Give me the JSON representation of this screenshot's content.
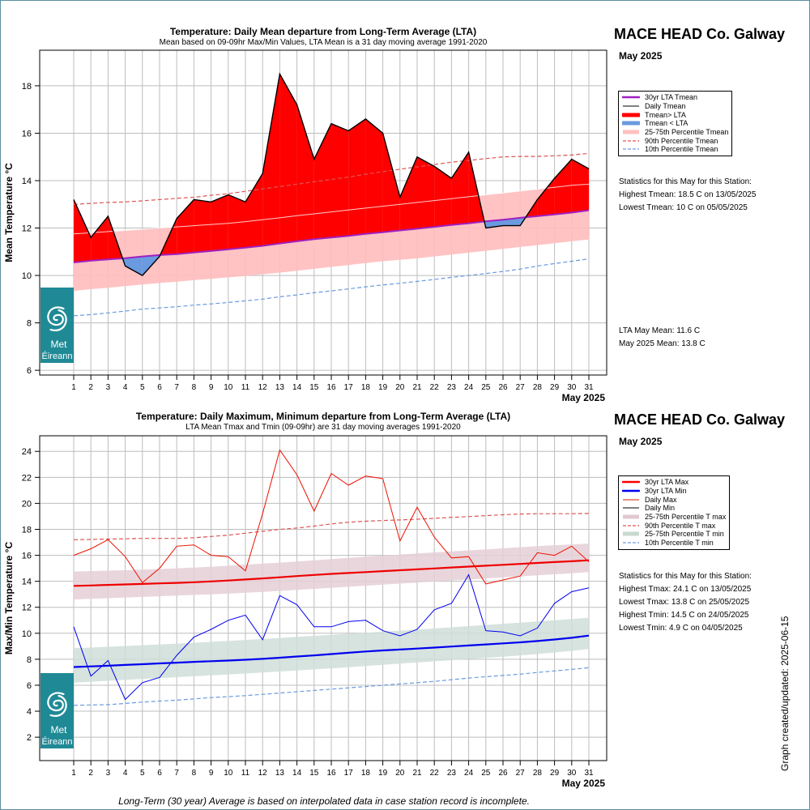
{
  "header_top": {
    "station": "MACE HEAD Co. Galway",
    "month": "May 2025"
  },
  "header_bottom": {
    "station": "MACE HEAD Co. Galway",
    "month": "May 2025"
  },
  "legend_top": [
    {
      "label": "30yr LTA Tmean",
      "color": "#a020c0",
      "style": "line-thick"
    },
    {
      "label": "Daily Tmean",
      "color": "#000000",
      "style": "line"
    },
    {
      "label": "Tmean> LTA",
      "color": "#ff0000",
      "style": "band-strong"
    },
    {
      "label": "Tmean < LTA",
      "color": "#6a9ae0",
      "style": "band-strong"
    },
    {
      "label": "25-75th Percentile Tmean",
      "color": "#ffc0c0",
      "style": "band"
    },
    {
      "label": "90th Percentile Tmean",
      "color": "#dd5555",
      "style": "dash"
    },
    {
      "label": "10th Percentile Tmean",
      "color": "#6a9ae0",
      "style": "dash"
    }
  ],
  "legend_bottom": [
    {
      "label": "30yr LTA Max",
      "color": "#ff0000",
      "style": "line-thick"
    },
    {
      "label": "30yr LTA Min",
      "color": "#0000ee",
      "style": "line-thick"
    },
    {
      "label": "Daily Max",
      "color": "#cc2200",
      "style": "line"
    },
    {
      "label": "Daily Min",
      "color": "#000000",
      "style": "line"
    },
    {
      "label": "25-75th Percentile T max",
      "color": "#e0c8d0",
      "style": "band"
    },
    {
      "label": "90th Percentile T max",
      "color": "#dd5555",
      "style": "dash"
    },
    {
      "label": "25-75th Percentile T min",
      "color": "#c8d8d0",
      "style": "band"
    },
    {
      "label": "10th Percentile T min",
      "color": "#6a9ae0",
      "style": "dash"
    }
  ],
  "stats_top": {
    "heading": "Statistics for this May for this Station:",
    "highest": "Highest Tmean: 18.5 C on 13/05/2025",
    "lowest": "Lowest Tmean: 10 C on 05/05/2025",
    "lta_mean": "LTA May Mean: 11.6 C",
    "month_mean": "May 2025 Mean: 13.8 C"
  },
  "stats_bottom": {
    "heading": "Statistics for this May for this Station:",
    "highest_tmax": "Highest Tmax: 24.1 C on 13/05/2025",
    "lowest_tmax": "Lowest Tmax: 13.8 C on 25/05/2025",
    "highest_tmin": "Highest Tmin: 14.5 C on 24/05/2025",
    "lowest_tmin": "Lowest Tmin: 4.9 C on 04/05/2025"
  },
  "logo": {
    "line1": "Met",
    "line2": "Éireann"
  },
  "footnote": "Long-Term (30 year) Average is based on interpolated data in case station record is incomplete.",
  "updated": "Graph created/updated:  2025-06-15",
  "chart_data": [
    {
      "type": "area",
      "title": "Temperature: Daily Mean departure from Long-Term Average (LTA)",
      "subtitle": "Mean based on 09-09hr Max/Min Values, LTA Mean is a 31 day moving average 1991-2020",
      "ylabel": "Mean Temperature °C",
      "xlabel": "May 2025",
      "x": [
        1,
        2,
        3,
        4,
        5,
        6,
        7,
        8,
        9,
        10,
        11,
        12,
        13,
        14,
        15,
        16,
        17,
        18,
        19,
        20,
        21,
        22,
        23,
        24,
        25,
        26,
        27,
        28,
        29,
        30,
        31
      ],
      "ylim": [
        5.8,
        19.5
      ],
      "yticks": [
        6,
        8,
        10,
        12,
        14,
        16,
        18
      ],
      "grid": true,
      "legend_position": "right",
      "series": [
        {
          "name": "Daily Tmean",
          "values": [
            13.2,
            11.6,
            12.5,
            10.4,
            10.0,
            10.8,
            12.4,
            13.2,
            13.1,
            13.4,
            13.1,
            14.3,
            18.5,
            17.2,
            14.9,
            16.4,
            16.1,
            16.6,
            16.0,
            13.3,
            15.0,
            14.6,
            14.1,
            15.2,
            12.0,
            12.1,
            12.1,
            13.2,
            14.1,
            14.9,
            14.5
          ]
        },
        {
          "name": "30yr LTA Tmean",
          "values": [
            10.55,
            10.62,
            10.68,
            10.73,
            10.8,
            10.86,
            10.9,
            10.97,
            11.03,
            11.1,
            11.17,
            11.25,
            11.35,
            11.44,
            11.53,
            11.6,
            11.67,
            11.75,
            11.82,
            11.9,
            11.97,
            12.05,
            12.13,
            12.2,
            12.28,
            12.35,
            12.43,
            12.5,
            12.57,
            12.65,
            12.75
          ]
        },
        {
          "name": "90th Percentile Tmean",
          "values": [
            13.0,
            13.04,
            13.08,
            13.1,
            13.15,
            13.2,
            13.25,
            13.3,
            13.38,
            13.45,
            13.55,
            13.65,
            13.75,
            13.85,
            13.95,
            14.05,
            14.15,
            14.27,
            14.38,
            14.48,
            14.58,
            14.68,
            14.78,
            14.85,
            14.93,
            15.0,
            15.02,
            15.02,
            15.05,
            15.08,
            15.15
          ]
        },
        {
          "name": "10th Percentile Tmean",
          "values": [
            8.3,
            8.35,
            8.42,
            8.5,
            8.58,
            8.63,
            8.68,
            8.75,
            8.8,
            8.86,
            8.93,
            9.0,
            9.1,
            9.18,
            9.27,
            9.35,
            9.43,
            9.52,
            9.6,
            9.67,
            9.75,
            9.83,
            9.92,
            10.0,
            10.08,
            10.17,
            10.27,
            10.4,
            10.5,
            10.6,
            10.7
          ]
        },
        {
          "name": "25-75th Percentile Tmean (25th)",
          "values": [
            9.35,
            9.42,
            9.48,
            9.55,
            9.62,
            9.68,
            9.74,
            9.8,
            9.86,
            9.92,
            9.98,
            10.05,
            10.12,
            10.2,
            10.28,
            10.36,
            10.44,
            10.52,
            10.6,
            10.66,
            10.72,
            10.8,
            10.88,
            10.96,
            11.04,
            11.12,
            11.2,
            11.28,
            11.36,
            11.44,
            11.52
          ]
        },
        {
          "name": "25-75th Percentile Tmean (75th)",
          "values": [
            11.75,
            11.8,
            11.85,
            11.9,
            11.95,
            12.0,
            12.05,
            12.1,
            12.15,
            12.2,
            12.27,
            12.35,
            12.43,
            12.52,
            12.6,
            12.68,
            12.76,
            12.84,
            12.92,
            13.0,
            13.08,
            13.16,
            13.24,
            13.32,
            13.4,
            13.48,
            13.56,
            13.64,
            13.72,
            13.8,
            13.85
          ]
        }
      ]
    },
    {
      "type": "line",
      "title": "Temperature: Daily Maximum, Minimum departure from Long-Term Average (LTA)",
      "subtitle": "LTA Mean Tmax and Tmin (09-09hr) are 31 day moving averages 1991-2020",
      "ylabel": "Max/Min Temperature °C",
      "xlabel": "May 2025",
      "x": [
        1,
        2,
        3,
        4,
        5,
        6,
        7,
        8,
        9,
        10,
        11,
        12,
        13,
        14,
        15,
        16,
        17,
        18,
        19,
        20,
        21,
        22,
        23,
        24,
        25,
        26,
        27,
        28,
        29,
        30,
        31
      ],
      "ylim": [
        0.2,
        25.2
      ],
      "yticks": [
        2,
        4,
        6,
        8,
        10,
        12,
        14,
        16,
        18,
        20,
        22,
        24
      ],
      "grid": true,
      "legend_position": "right",
      "series": [
        {
          "name": "Daily Max",
          "values": [
            16.0,
            16.5,
            17.2,
            15.9,
            13.9,
            15.0,
            16.7,
            16.8,
            16.0,
            15.9,
            14.8,
            19.2,
            24.1,
            22.2,
            19.4,
            22.3,
            21.4,
            22.1,
            21.9,
            17.1,
            19.7,
            17.4,
            15.8,
            15.9,
            13.8,
            14.1,
            14.4,
            16.2,
            16.0,
            16.7,
            15.5
          ]
        },
        {
          "name": "Daily Min",
          "values": [
            10.5,
            6.7,
            7.9,
            4.9,
            6.2,
            6.6,
            8.3,
            9.7,
            10.3,
            11.0,
            11.4,
            9.5,
            12.9,
            12.2,
            10.5,
            10.5,
            10.9,
            11.0,
            10.2,
            9.8,
            10.3,
            11.8,
            12.3,
            14.5,
            10.2,
            10.1,
            9.8,
            10.4,
            12.3,
            13.2,
            13.5
          ]
        },
        {
          "name": "30yr LTA Max",
          "values": [
            13.65,
            13.68,
            13.72,
            13.76,
            13.8,
            13.84,
            13.88,
            13.93,
            13.99,
            14.06,
            14.14,
            14.22,
            14.31,
            14.4,
            14.49,
            14.57,
            14.64,
            14.71,
            14.78,
            14.85,
            14.92,
            14.99,
            15.06,
            15.13,
            15.2,
            15.27,
            15.34,
            15.41,
            15.48,
            15.54,
            15.62
          ]
        },
        {
          "name": "30yr LTA Min",
          "values": [
            7.4,
            7.45,
            7.5,
            7.56,
            7.62,
            7.68,
            7.74,
            7.8,
            7.85,
            7.9,
            7.96,
            8.03,
            8.12,
            8.21,
            8.3,
            8.4,
            8.5,
            8.6,
            8.68,
            8.75,
            8.82,
            8.9,
            8.98,
            9.06,
            9.14,
            9.22,
            9.3,
            9.4,
            9.52,
            9.65,
            9.82
          ]
        },
        {
          "name": "90th Percentile T max",
          "values": [
            17.2,
            17.22,
            17.25,
            17.27,
            17.3,
            17.3,
            17.3,
            17.35,
            17.45,
            17.55,
            17.7,
            17.85,
            18.0,
            18.1,
            18.25,
            18.42,
            18.55,
            18.62,
            18.68,
            18.72,
            18.78,
            18.85,
            18.92,
            18.98,
            19.05,
            19.12,
            19.18,
            19.2,
            19.2,
            19.2,
            19.22
          ]
        },
        {
          "name": "10th Percentile T min",
          "values": [
            4.45,
            4.48,
            4.5,
            4.6,
            4.7,
            4.78,
            4.85,
            4.95,
            5.05,
            5.12,
            5.2,
            5.3,
            5.4,
            5.5,
            5.6,
            5.7,
            5.8,
            5.9,
            6.0,
            6.1,
            6.2,
            6.3,
            6.42,
            6.55,
            6.65,
            6.75,
            6.85,
            6.98,
            7.1,
            7.22,
            7.35
          ]
        },
        {
          "name": "25-75th Percentile T max (25th)",
          "values": [
            12.6,
            12.65,
            12.7,
            12.75,
            12.8,
            12.85,
            12.9,
            12.95,
            13.0,
            13.05,
            13.12,
            13.18,
            13.26,
            13.34,
            13.42,
            13.5,
            13.58,
            13.66,
            13.74,
            13.82,
            13.9,
            13.98,
            14.06,
            14.14,
            14.22,
            14.3,
            14.38,
            14.46,
            14.54,
            14.62,
            14.72
          ]
        },
        {
          "name": "25-75th Percentile T max (75th)",
          "values": [
            14.75,
            14.78,
            14.82,
            14.86,
            14.9,
            14.95,
            15.0,
            15.06,
            15.12,
            15.2,
            15.28,
            15.36,
            15.44,
            15.53,
            15.62,
            15.71,
            15.8,
            15.89,
            15.98,
            16.06,
            16.14,
            16.22,
            16.3,
            16.38,
            16.46,
            16.54,
            16.62,
            16.7,
            16.78,
            16.84,
            16.9
          ]
        },
        {
          "name": "25-75th Percentile T min (25th)",
          "values": [
            6.2,
            6.27,
            6.34,
            6.41,
            6.48,
            6.55,
            6.62,
            6.69,
            6.76,
            6.83,
            6.9,
            6.98,
            7.06,
            7.14,
            7.22,
            7.3,
            7.39,
            7.48,
            7.57,
            7.66,
            7.75,
            7.84,
            7.93,
            8.02,
            8.11,
            8.2,
            8.3,
            8.4,
            8.52,
            8.65,
            8.8
          ]
        },
        {
          "name": "25-75th Percentile T min (75th)",
          "values": [
            8.85,
            8.9,
            8.96,
            9.02,
            9.08,
            9.14,
            9.2,
            9.27,
            9.34,
            9.41,
            9.48,
            9.56,
            9.64,
            9.72,
            9.8,
            9.88,
            9.96,
            10.04,
            10.12,
            10.2,
            10.28,
            10.37,
            10.46,
            10.55,
            10.64,
            10.73,
            10.82,
            10.91,
            11.0,
            11.1,
            11.2
          ]
        }
      ]
    }
  ]
}
